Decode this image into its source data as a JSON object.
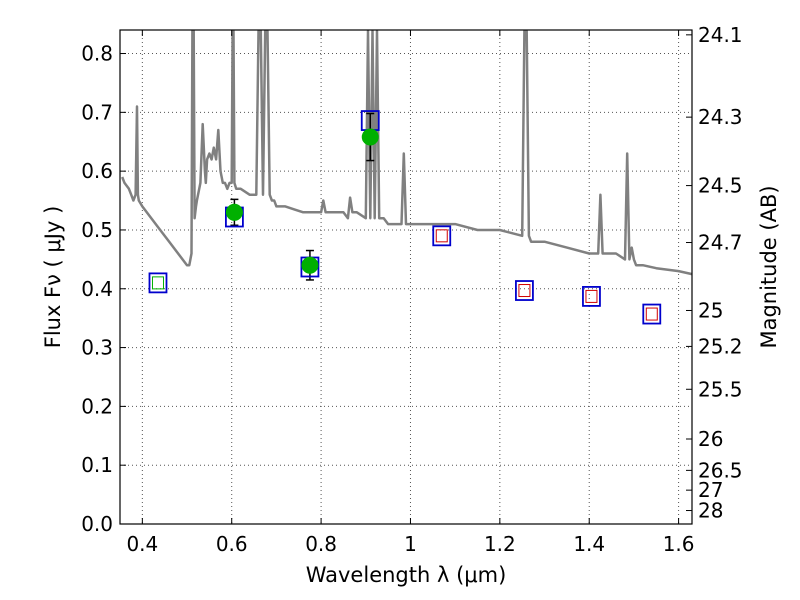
{
  "chart_data": {
    "type": "scatter",
    "xlabel": "Wavelength  λ (μm)",
    "ylabel": "Flux  Fν  ( μJy )",
    "ylabel_right": "Magnitude (AB)",
    "xlim": [
      0.35,
      1.63
    ],
    "ylim": [
      0.0,
      0.84
    ],
    "grid": true,
    "x_ticks": [
      {
        "value": 0.4,
        "label": "0.4"
      },
      {
        "value": 0.6,
        "label": "0.6"
      },
      {
        "value": 0.8,
        "label": "0.8"
      },
      {
        "value": 1.0,
        "label": "1"
      },
      {
        "value": 1.2,
        "label": "1.2"
      },
      {
        "value": 1.4,
        "label": "1.4"
      },
      {
        "value": 1.6,
        "label": "1.6"
      }
    ],
    "y_ticks": [
      {
        "value": 0.0,
        "label": "0.0"
      },
      {
        "value": 0.1,
        "label": "0.1"
      },
      {
        "value": 0.2,
        "label": "0.2"
      },
      {
        "value": 0.3,
        "label": "0.3"
      },
      {
        "value": 0.4,
        "label": "0.4"
      },
      {
        "value": 0.5,
        "label": "0.5"
      },
      {
        "value": 0.6,
        "label": "0.6"
      },
      {
        "value": 0.7,
        "label": "0.7"
      },
      {
        "value": 0.8,
        "label": "0.8"
      }
    ],
    "right_ticks": [
      {
        "value": 24.1,
        "label": "24.1"
      },
      {
        "value": 24.3,
        "label": "24.3"
      },
      {
        "value": 24.5,
        "label": "24.5"
      },
      {
        "value": 24.7,
        "label": "24.7"
      },
      {
        "value": 25,
        "label": "25"
      },
      {
        "value": 25.2,
        "label": "25.2"
      },
      {
        "value": 25.5,
        "label": "25.5"
      },
      {
        "value": 26,
        "label": "26"
      },
      {
        "value": 26.5,
        "label": "26.5"
      },
      {
        "value": 27,
        "label": "27"
      },
      {
        "value": 28,
        "label": "28"
      }
    ],
    "series": [
      {
        "kind": "model-spectrum",
        "color": "#808080",
        "x": [
          0.355,
          0.36,
          0.37,
          0.375,
          0.38,
          0.385,
          0.388,
          0.39,
          0.392,
          0.4,
          0.42,
          0.44,
          0.46,
          0.48,
          0.5,
          0.505,
          0.51,
          0.512,
          0.515,
          0.517,
          0.52,
          0.522,
          0.53,
          0.535,
          0.54,
          0.542,
          0.545,
          0.55,
          0.555,
          0.56,
          0.565,
          0.57,
          0.575,
          0.58,
          0.585,
          0.59,
          0.595,
          0.6,
          0.602,
          0.604,
          0.606,
          0.61,
          0.62,
          0.64,
          0.655,
          0.66,
          0.665,
          0.67,
          0.675,
          0.68,
          0.685,
          0.69,
          0.695,
          0.7,
          0.72,
          0.74,
          0.76,
          0.8,
          0.805,
          0.81,
          0.82,
          0.85,
          0.86,
          0.865,
          0.87,
          0.88,
          0.9,
          0.905,
          0.91,
          0.915,
          0.92,
          0.925,
          0.93,
          0.935,
          0.94,
          0.95,
          0.98,
          0.985,
          0.99,
          1.0,
          1.05,
          1.1,
          1.15,
          1.2,
          1.25,
          1.255,
          1.26,
          1.265,
          1.27,
          1.3,
          1.35,
          1.4,
          1.42,
          1.425,
          1.43,
          1.44,
          1.46,
          1.48,
          1.485,
          1.49,
          1.495,
          1.5,
          1.505,
          1.51,
          1.52,
          1.55,
          1.6,
          1.63
        ],
        "y": [
          0.59,
          0.58,
          0.57,
          0.56,
          0.55,
          0.56,
          0.71,
          0.56,
          0.55,
          0.54,
          0.52,
          0.5,
          0.48,
          0.46,
          0.44,
          0.44,
          0.46,
          0.84,
          0.84,
          0.52,
          0.54,
          0.55,
          0.58,
          0.68,
          0.6,
          0.58,
          0.62,
          0.63,
          0.62,
          0.64,
          0.62,
          0.67,
          0.6,
          0.58,
          0.58,
          0.57,
          0.58,
          0.58,
          0.84,
          0.84,
          0.58,
          0.57,
          0.57,
          0.56,
          0.56,
          0.84,
          0.84,
          0.56,
          0.84,
          0.84,
          0.56,
          0.55,
          0.55,
          0.54,
          0.54,
          0.535,
          0.53,
          0.53,
          0.55,
          0.53,
          0.53,
          0.53,
          0.52,
          0.555,
          0.53,
          0.53,
          0.52,
          0.84,
          0.52,
          0.84,
          0.52,
          0.84,
          0.52,
          0.52,
          0.52,
          0.51,
          0.51,
          0.63,
          0.51,
          0.51,
          0.51,
          0.51,
          0.5,
          0.5,
          0.49,
          0.84,
          0.84,
          0.49,
          0.48,
          0.48,
          0.47,
          0.46,
          0.46,
          0.56,
          0.46,
          0.46,
          0.46,
          0.45,
          0.63,
          0.45,
          0.47,
          0.45,
          0.44,
          0.44,
          0.44,
          0.435,
          0.43,
          0.425
        ]
      },
      {
        "kind": "observed",
        "marker": "circle",
        "color": "#00b000",
        "points": [
          {
            "x": 0.606,
            "y": 0.53,
            "err": 0.022
          },
          {
            "x": 0.775,
            "y": 0.44,
            "err": 0.025
          },
          {
            "x": 0.91,
            "y": 0.658,
            "err": 0.04
          }
        ]
      },
      {
        "kind": "model-photometry",
        "marker": "square",
        "color": "#0000cc",
        "points": [
          {
            "x": 0.435,
            "y": 0.41
          },
          {
            "x": 0.606,
            "y": 0.522
          },
          {
            "x": 0.775,
            "y": 0.437
          },
          {
            "x": 0.91,
            "y": 0.686
          },
          {
            "x": 1.07,
            "y": 0.49
          },
          {
            "x": 1.255,
            "y": 0.397
          },
          {
            "x": 1.405,
            "y": 0.387
          },
          {
            "x": 1.54,
            "y": 0.357
          }
        ]
      },
      {
        "kind": "inner-marker",
        "marker": "square",
        "color": "#d00000",
        "points": [
          {
            "x": 1.07,
            "y": 0.49
          },
          {
            "x": 1.255,
            "y": 0.397
          },
          {
            "x": 1.405,
            "y": 0.387
          },
          {
            "x": 1.54,
            "y": 0.357
          }
        ]
      },
      {
        "kind": "inner-marker",
        "marker": "square",
        "color": "#00b000",
        "points": [
          {
            "x": 0.435,
            "y": 0.41
          }
        ]
      }
    ]
  }
}
